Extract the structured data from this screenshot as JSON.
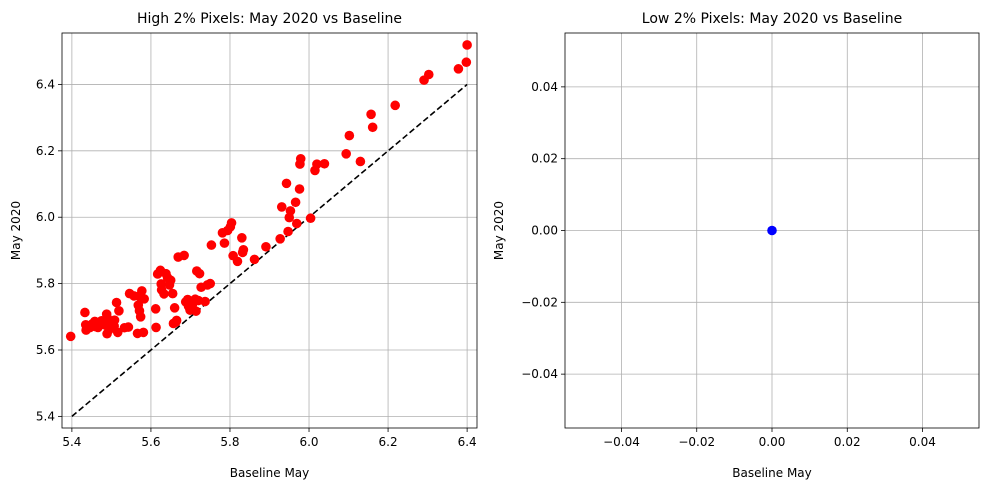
{
  "chart_data": [
    {
      "type": "scatter",
      "title": "High 2% Pixels: May 2020 vs Baseline",
      "xlabel": "Baseline May",
      "ylabel": "May 2020",
      "xlim": [
        5.375,
        6.425
      ],
      "ylim": [
        5.365,
        6.555
      ],
      "xticks": [
        "5.4",
        "5.6",
        "5.8",
        "6.0",
        "6.2",
        "6.4"
      ],
      "yticks": [
        "5.4",
        "5.6",
        "5.8",
        "6.0",
        "6.2",
        "6.4"
      ],
      "grid": true,
      "marker_color": "#ff0000",
      "reference_line": {
        "x": [
          5.4,
          6.4
        ],
        "y": [
          5.4,
          6.4
        ],
        "style": "dashed",
        "color": "#000000"
      },
      "points": [
        [
          5.397,
          5.641
        ],
        [
          5.433,
          5.713
        ],
        [
          5.435,
          5.676
        ],
        [
          5.436,
          5.66
        ],
        [
          5.445,
          5.667
        ],
        [
          5.452,
          5.679
        ],
        [
          5.458,
          5.686
        ],
        [
          5.46,
          5.67
        ],
        [
          5.466,
          5.668
        ],
        [
          5.47,
          5.684
        ],
        [
          5.475,
          5.688
        ],
        [
          5.482,
          5.676
        ],
        [
          5.488,
          5.708
        ],
        [
          5.489,
          5.649
        ],
        [
          5.49,
          5.696
        ],
        [
          5.494,
          5.661
        ],
        [
          5.501,
          5.681
        ],
        [
          5.507,
          5.672
        ],
        [
          5.508,
          5.69
        ],
        [
          5.513,
          5.743
        ],
        [
          5.516,
          5.653
        ],
        [
          5.519,
          5.718
        ],
        [
          5.533,
          5.667
        ],
        [
          5.543,
          5.669
        ],
        [
          5.546,
          5.77
        ],
        [
          5.557,
          5.763
        ],
        [
          5.566,
          5.65
        ],
        [
          5.568,
          5.735
        ],
        [
          5.57,
          5.762
        ],
        [
          5.571,
          5.718
        ],
        [
          5.574,
          5.7
        ],
        [
          5.577,
          5.778
        ],
        [
          5.581,
          5.653
        ],
        [
          5.583,
          5.754
        ],
        [
          5.612,
          5.724
        ],
        [
          5.613,
          5.668
        ],
        [
          5.617,
          5.829
        ],
        [
          5.624,
          5.84
        ],
        [
          5.626,
          5.799
        ],
        [
          5.627,
          5.781
        ],
        [
          5.633,
          5.769
        ],
        [
          5.638,
          5.83
        ],
        [
          5.642,
          5.818
        ],
        [
          5.647,
          5.796
        ],
        [
          5.65,
          5.81
        ],
        [
          5.655,
          5.77
        ],
        [
          5.657,
          5.68
        ],
        [
          5.66,
          5.727
        ],
        [
          5.663,
          5.684
        ],
        [
          5.665,
          5.689
        ],
        [
          5.669,
          5.88
        ],
        [
          5.684,
          5.885
        ],
        [
          5.688,
          5.745
        ],
        [
          5.693,
          5.752
        ],
        [
          5.695,
          5.732
        ],
        [
          5.699,
          5.72
        ],
        [
          5.705,
          5.737
        ],
        [
          5.712,
          5.753
        ],
        [
          5.714,
          5.717
        ],
        [
          5.716,
          5.838
        ],
        [
          5.72,
          5.749
        ],
        [
          5.723,
          5.83
        ],
        [
          5.727,
          5.789
        ],
        [
          5.737,
          5.746
        ],
        [
          5.743,
          5.796
        ],
        [
          5.75,
          5.8
        ],
        [
          5.753,
          5.916
        ],
        [
          5.781,
          5.953
        ],
        [
          5.786,
          5.922
        ],
        [
          5.794,
          5.96
        ],
        [
          5.801,
          5.971
        ],
        [
          5.804,
          5.983
        ],
        [
          5.808,
          5.884
        ],
        [
          5.819,
          5.867
        ],
        [
          5.83,
          5.938
        ],
        [
          5.832,
          5.894
        ],
        [
          5.834,
          5.902
        ],
        [
          5.862,
          5.873
        ],
        [
          5.891,
          5.911
        ],
        [
          5.927,
          5.935
        ],
        [
          5.931,
          6.031
        ],
        [
          5.943,
          6.102
        ],
        [
          5.947,
          5.957
        ],
        [
          5.95,
          5.999
        ],
        [
          5.953,
          6.019
        ],
        [
          5.966,
          6.045
        ],
        [
          5.969,
          5.981
        ],
        [
          5.976,
          6.085
        ],
        [
          5.977,
          6.16
        ],
        [
          5.979,
          6.176
        ],
        [
          6.004,
          5.997
        ],
        [
          6.015,
          6.141
        ],
        [
          6.02,
          6.16
        ],
        [
          6.039,
          6.161
        ],
        [
          6.094,
          6.191
        ],
        [
          6.102,
          6.246
        ],
        [
          6.13,
          6.168
        ],
        [
          6.157,
          6.31
        ],
        [
          6.161,
          6.271
        ],
        [
          6.218,
          6.337
        ],
        [
          6.291,
          6.413
        ],
        [
          6.303,
          6.43
        ],
        [
          6.378,
          6.447
        ],
        [
          6.398,
          6.467
        ],
        [
          6.4,
          6.519
        ]
      ]
    },
    {
      "type": "scatter",
      "title": "Low 2% Pixels: May 2020 vs Baseline",
      "xlabel": "Baseline May",
      "ylabel": "May 2020",
      "xlim": [
        -0.055,
        0.055
      ],
      "ylim": [
        -0.055,
        0.055
      ],
      "xticks": [
        "−0.04",
        "−0.02",
        "0.00",
        "0.02",
        "0.04"
      ],
      "yticks": [
        "−0.04",
        "−0.02",
        "0.00",
        "0.02",
        "0.04"
      ],
      "grid": true,
      "marker_color": "#0000ff",
      "points": [
        [
          0.0,
          0.0
        ]
      ]
    }
  ]
}
